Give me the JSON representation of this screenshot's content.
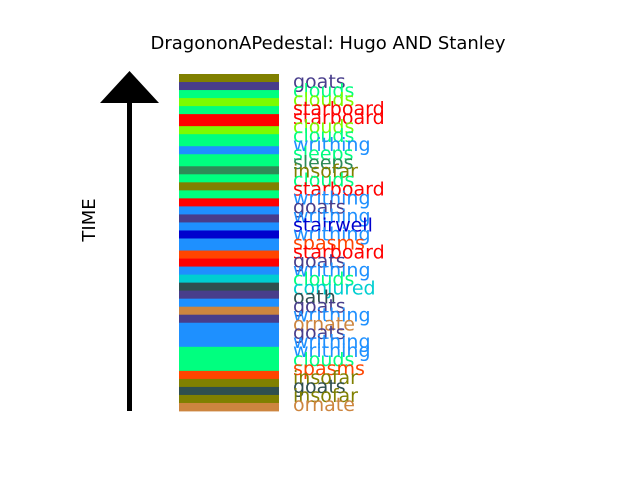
{
  "chart_data": {
    "type": "bar",
    "title": "DragononAPedestal: Hugo AND Stanley",
    "ylabel": "TIME",
    "orientation": "vertical-timeline",
    "segments_top_to_bottom": [
      {
        "color": "#808000",
        "weight": 2
      },
      {
        "color": "#483d8b",
        "weight": 2
      },
      {
        "color": "#00ff7f",
        "weight": 2
      },
      {
        "color": "#7cfc00",
        "weight": 2
      },
      {
        "color": "#00ff7f",
        "weight": 2
      },
      {
        "color": "#ff0000",
        "weight": 3
      },
      {
        "color": "#7cfc00",
        "weight": 2
      },
      {
        "color": "#00ff7f",
        "weight": 3
      },
      {
        "color": "#1e90ff",
        "weight": 2
      },
      {
        "color": "#00ff7f",
        "weight": 3
      },
      {
        "color": "#2e8b57",
        "weight": 2
      },
      {
        "color": "#00ff7f",
        "weight": 2
      },
      {
        "color": "#808000",
        "weight": 2
      },
      {
        "color": "#00ff7f",
        "weight": 2
      },
      {
        "color": "#ff0000",
        "weight": 2
      },
      {
        "color": "#1e90ff",
        "weight": 2
      },
      {
        "color": "#483d8b",
        "weight": 2
      },
      {
        "color": "#1e90ff",
        "weight": 2
      },
      {
        "color": "#0000cd",
        "weight": 2
      },
      {
        "color": "#1e90ff",
        "weight": 3
      },
      {
        "color": "#ff4500",
        "weight": 2
      },
      {
        "color": "#ff0000",
        "weight": 2
      },
      {
        "color": "#1e90ff",
        "weight": 2
      },
      {
        "color": "#00ced1",
        "weight": 2
      },
      {
        "color": "#2f4f4f",
        "weight": 2
      },
      {
        "color": "#483d8b",
        "weight": 2
      },
      {
        "color": "#1e90ff",
        "weight": 2
      },
      {
        "color": "#cd853f",
        "weight": 2
      },
      {
        "color": "#483d8b",
        "weight": 2
      },
      {
        "color": "#1e90ff",
        "weight": 4
      },
      {
        "color": "#1e90ff",
        "weight": 2
      },
      {
        "color": "#00ff7f",
        "weight": 6
      },
      {
        "color": "#ff4500",
        "weight": 2
      },
      {
        "color": "#808000",
        "weight": 2
      },
      {
        "color": "#2f4f4f",
        "weight": 2
      },
      {
        "color": "#808000",
        "weight": 2
      },
      {
        "color": "#cd853f",
        "weight": 2
      }
    ],
    "labels_top_to_bottom": [
      {
        "text": "goats",
        "color": "#483d8b"
      },
      {
        "text": "clouds",
        "color": "#00ff7f"
      },
      {
        "text": "clouds",
        "color": "#7cfc00"
      },
      {
        "text": "starboard",
        "color": "#ff0000"
      },
      {
        "text": "starboard",
        "color": "#ff0000"
      },
      {
        "text": "clouds",
        "color": "#7cfc00"
      },
      {
        "text": "clouds",
        "color": "#00ff7f"
      },
      {
        "text": "writhing",
        "color": "#1e90ff"
      },
      {
        "text": "sleeps",
        "color": "#00ff7f"
      },
      {
        "text": "sleeps",
        "color": "#2e8b57"
      },
      {
        "text": "insofar",
        "color": "#808000"
      },
      {
        "text": "clouds",
        "color": "#00ff7f"
      },
      {
        "text": "starboard",
        "color": "#ff0000"
      },
      {
        "text": "writhing",
        "color": "#1e90ff"
      },
      {
        "text": "goats",
        "color": "#483d8b"
      },
      {
        "text": "writhing",
        "color": "#1e90ff"
      },
      {
        "text": "stairwell",
        "color": "#0000cd"
      },
      {
        "text": "writhing",
        "color": "#1e90ff"
      },
      {
        "text": "spasms",
        "color": "#ff4500"
      },
      {
        "text": "starboard",
        "color": "#ff0000"
      },
      {
        "text": "goats",
        "color": "#483d8b"
      },
      {
        "text": "writhing",
        "color": "#1e90ff"
      },
      {
        "text": "clouds",
        "color": "#00ff7f"
      },
      {
        "text": "conjured",
        "color": "#00ced1"
      },
      {
        "text": "oath",
        "color": "#2f4f4f"
      },
      {
        "text": "goats",
        "color": "#483d8b"
      },
      {
        "text": "writhing",
        "color": "#1e90ff"
      },
      {
        "text": "ornate",
        "color": "#cd853f"
      },
      {
        "text": "goats",
        "color": "#483d8b"
      },
      {
        "text": "writhing",
        "color": "#1e90ff"
      },
      {
        "text": "writhing",
        "color": "#1e90ff"
      },
      {
        "text": "clouds",
        "color": "#00ff7f"
      },
      {
        "text": "spasms",
        "color": "#ff4500"
      },
      {
        "text": "insofar",
        "color": "#808000"
      },
      {
        "text": "goats",
        "color": "#2f4f4f"
      },
      {
        "text": "insofar",
        "color": "#808000"
      },
      {
        "text": "ornate",
        "color": "#cd853f"
      }
    ]
  }
}
